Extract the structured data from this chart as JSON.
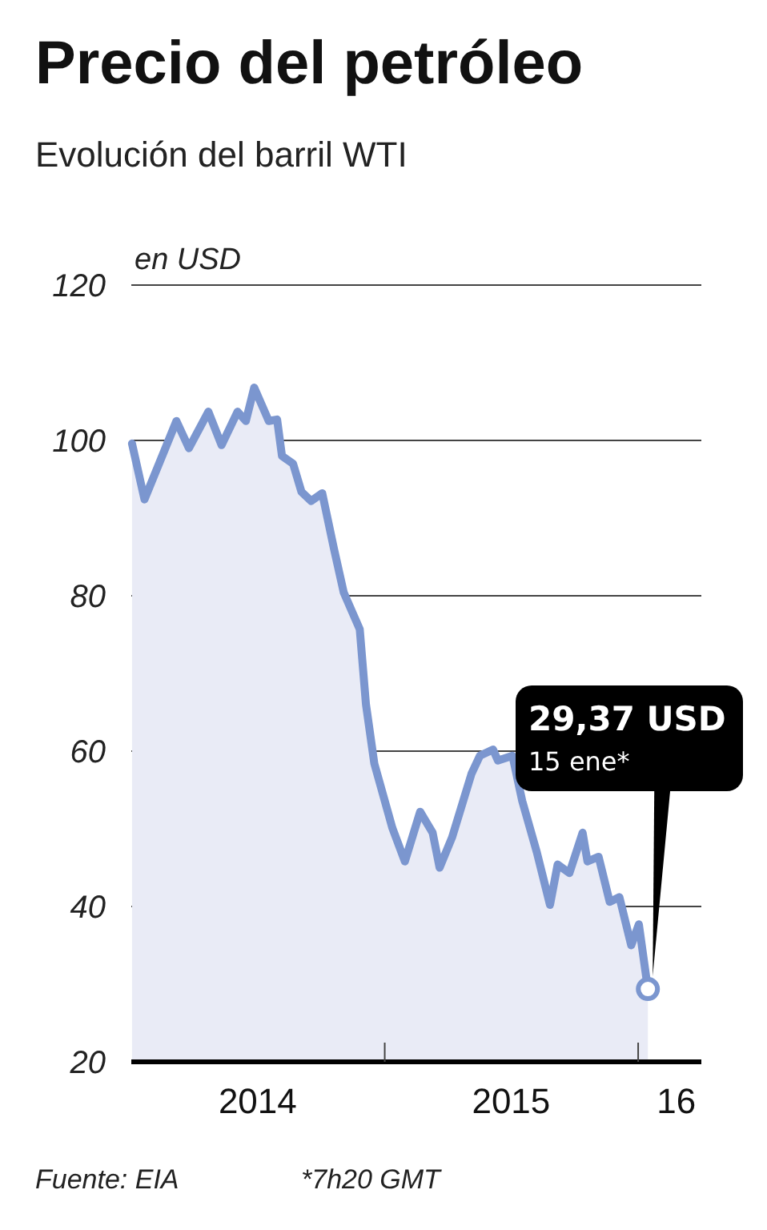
{
  "chart_data": {
    "type": "area",
    "title": "Precio del petróleo",
    "subtitle": "Evolución del barril WTI",
    "ylabel": "en USD",
    "x": [
      "2014-01-02",
      "2014-01-20",
      "2014-03-07",
      "2014-03-25",
      "2014-04-22",
      "2014-05-11",
      "2014-06-03",
      "2014-06-15",
      "2014-06-27",
      "2014-07-18",
      "2014-07-30",
      "2014-08-06",
      "2014-08-22",
      "2014-09-03",
      "2014-09-17",
      "2014-10-03",
      "2014-10-20",
      "2014-11-03",
      "2014-11-26",
      "2014-12-05",
      "2014-12-17",
      "2015-01-12",
      "2015-01-30",
      "2015-02-21",
      "2015-03-11",
      "2015-03-21",
      "2015-04-08",
      "2015-05-06",
      "2015-05-18",
      "2015-06-06",
      "2015-06-13",
      "2015-07-04",
      "2015-07-18",
      "2015-08-08",
      "2015-08-27",
      "2015-09-07",
      "2015-09-24",
      "2015-10-13",
      "2015-10-20",
      "2015-11-05",
      "2015-11-21",
      "2015-12-05",
      "2015-12-22",
      "2016-01-02",
      "2016-01-15"
    ],
    "series": [
      {
        "color": "#7b96cf",
        "values": [
          99.6,
          92.4,
          102.5,
          99,
          103.7,
          99.4,
          103.7,
          102.5,
          106.8,
          102.5,
          102.7,
          98,
          97,
          93.4,
          92.2,
          93.2,
          86,
          80.4,
          75.7,
          66,
          58.4,
          50.1,
          45.8,
          52.2,
          49.5,
          45,
          48.9,
          57.1,
          59.4,
          60.2,
          58.8,
          59.4,
          53.6,
          47,
          40.2,
          45.4,
          44.3,
          49.5,
          45.8,
          46.4,
          40.6,
          41.2,
          35,
          37.7,
          29.37
        ]
      }
    ],
    "xlim": [
      "2014-01-01",
      "2016-04-01"
    ],
    "xticks": [
      {
        "value": "2014-07-02",
        "label": "2014"
      },
      {
        "value": "2015-01-01",
        "label": null
      },
      {
        "value": "2015-07-02",
        "label": "2015"
      },
      {
        "value": "2016-01-01",
        "label": null
      },
      {
        "value": "2016-02-25",
        "label": "16"
      }
    ],
    "ylim": [
      20,
      120
    ],
    "yticks": [
      20,
      40,
      60,
      80,
      100,
      120
    ],
    "grid": "y",
    "marker": "none",
    "line_style": "solid",
    "annotations": [
      "29,37 USD",
      "15 ene*",
      "Fuente: EIA",
      "*7h20 GMT"
    ]
  }
}
